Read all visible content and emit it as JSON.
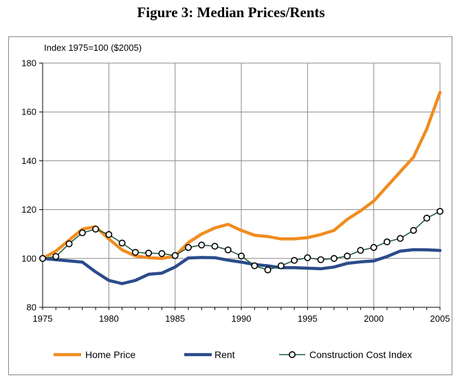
{
  "figure": {
    "title": "Figure 3: Median Prices/Rents"
  },
  "chart_data": {
    "type": "line",
    "ylabel": "Index 1975=100 ($2005)",
    "xlim": [
      1975,
      2005
    ],
    "ylim": [
      80,
      180
    ],
    "y_ticks": [
      "80",
      "100",
      "120",
      "140",
      "160",
      "180"
    ],
    "x_ticks": [
      "1975",
      "1980",
      "1985",
      "1990",
      "1995",
      "2000",
      "2005"
    ],
    "grid": "horizontal",
    "legend": "bottom",
    "x": [
      1975,
      1976,
      1977,
      1978,
      1979,
      1980,
      1981,
      1982,
      1983,
      1984,
      1985,
      1986,
      1987,
      1988,
      1989,
      1990,
      1991,
      1992,
      1993,
      1994,
      1995,
      1996,
      1997,
      1998,
      1999,
      2000,
      2001,
      2002,
      2003,
      2004,
      2005
    ],
    "series": [
      {
        "name": "Home Price",
        "color": "#f08c1e",
        "marker": "none",
        "values": [
          100,
          103,
          107.5,
          112,
          113,
          108,
          103.5,
          101,
          100.3,
          100,
          101,
          106.5,
          110,
          112.5,
          114,
          111.5,
          109.5,
          109,
          108,
          108,
          108.5,
          109.8,
          111.5,
          116,
          119.5,
          123.5,
          129.5,
          135.5,
          141.5,
          153,
          168
        ]
      },
      {
        "name": "Rent",
        "color": "#2b4b8b",
        "marker": "none",
        "values": [
          100,
          99.5,
          99,
          98.5,
          94.5,
          91,
          89.7,
          91,
          93.5,
          94,
          96.5,
          100.2,
          100.4,
          100.3,
          99.3,
          98.5,
          97.5,
          97,
          96.2,
          96.2,
          96,
          95.8,
          96.5,
          98,
          98.6,
          99,
          100.8,
          103,
          103.6,
          103.5,
          103.3
        ]
      },
      {
        "name": "Construction Cost Index",
        "color": "#1d5b3a",
        "marker": "circle",
        "values": [
          100,
          100.8,
          106,
          110.5,
          112,
          109.8,
          106.3,
          102.5,
          102.2,
          102,
          101.2,
          104.5,
          105.5,
          105,
          103.5,
          101,
          97,
          95.3,
          97,
          99.2,
          100.3,
          99.5,
          100,
          101,
          103.3,
          104.5,
          106.8,
          108.2,
          111.5,
          116.5,
          119.3
        ]
      }
    ]
  }
}
